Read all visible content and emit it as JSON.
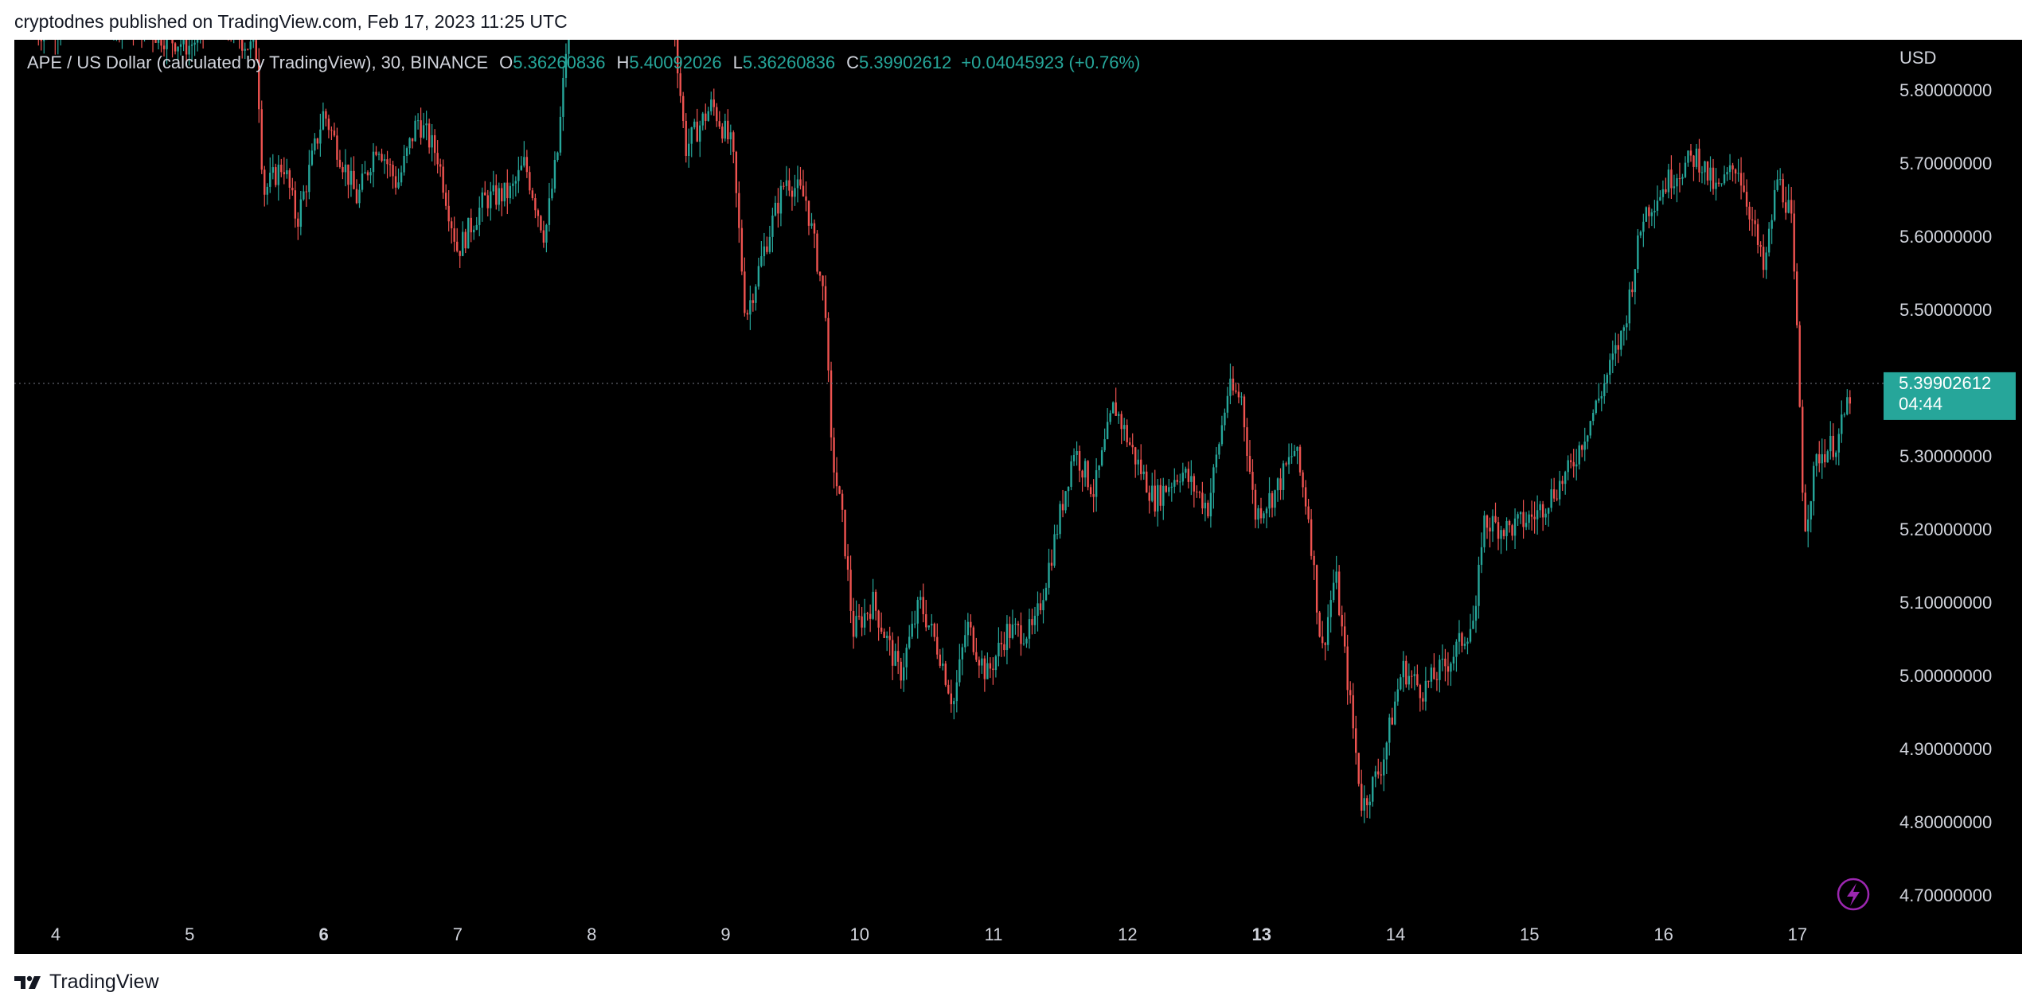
{
  "publish_line": "cryptodnes published on TradingView.com, Feb 17, 2023 11:25 UTC",
  "header": {
    "symbol": "APE / US Dollar (calculated by TradingView), 30, BINANCE",
    "o_label": "O",
    "o_value": "5.36260836",
    "h_label": "H",
    "h_value": "5.40092026",
    "l_label": "L",
    "l_value": "5.36260836",
    "c_label": "C",
    "c_value": "5.39902612",
    "change": "+0.04045923 (+0.76%)"
  },
  "brand": {
    "name": "TradingView",
    "icon": "tradingview-logo-icon"
  },
  "price_badge": {
    "price": "5.39902612",
    "countdown": "04:44"
  },
  "colors": {
    "up": "#26a69a",
    "down": "#ef5350",
    "background": "#000000",
    "axis_text": "#d1d4dc",
    "badge": "#26a69a",
    "lightning": "#9c27b0"
  },
  "chart_data": {
    "type": "candlestick",
    "interval_minutes": 30,
    "currency_label": "USD",
    "ylim": [
      4.65,
      5.85
    ],
    "y_ticks": [
      "5.80000000",
      "5.70000000",
      "5.60000000",
      "5.50000000",
      "5.30000000",
      "5.20000000",
      "5.10000000",
      "5.00000000",
      "4.90000000",
      "4.80000000",
      "4.70000000"
    ],
    "x_ticks": [
      {
        "label": "4",
        "day": 4,
        "bold": false
      },
      {
        "label": "5",
        "day": 5,
        "bold": false
      },
      {
        "label": "6",
        "day": 6,
        "bold": true
      },
      {
        "label": "7",
        "day": 7,
        "bold": false
      },
      {
        "label": "8",
        "day": 8,
        "bold": false
      },
      {
        "label": "9",
        "day": 9,
        "bold": false
      },
      {
        "label": "10",
        "day": 10,
        "bold": false
      },
      {
        "label": "11",
        "day": 11,
        "bold": false
      },
      {
        "label": "12",
        "day": 12,
        "bold": false
      },
      {
        "label": "13",
        "day": 13,
        "bold": true
      },
      {
        "label": "14",
        "day": 14,
        "bold": false
      },
      {
        "label": "15",
        "day": 15,
        "bold": false
      },
      {
        "label": "16",
        "day": 16,
        "bold": false
      },
      {
        "label": "17",
        "day": 17,
        "bold": false
      }
    ],
    "xlim_days": [
      3.7,
      17.7
    ],
    "last_price": 5.39902612,
    "price_path": [
      [
        3.85,
        5.88
      ],
      [
        4.4,
        5.9
      ],
      [
        5.0,
        5.86
      ],
      [
        5.2,
        5.9
      ],
      [
        5.5,
        5.85
      ],
      [
        5.55,
        5.66
      ],
      [
        5.7,
        5.7
      ],
      [
        5.8,
        5.62
      ],
      [
        6.0,
        5.77
      ],
      [
        6.25,
        5.65
      ],
      [
        6.4,
        5.73
      ],
      [
        6.55,
        5.67
      ],
      [
        6.7,
        5.76
      ],
      [
        6.85,
        5.71
      ],
      [
        7.0,
        5.58
      ],
      [
        7.2,
        5.65
      ],
      [
        7.4,
        5.66
      ],
      [
        7.5,
        5.7
      ],
      [
        7.65,
        5.6
      ],
      [
        7.75,
        5.72
      ],
      [
        7.85,
        5.95
      ],
      [
        8.6,
        5.92
      ],
      [
        8.7,
        5.72
      ],
      [
        8.9,
        5.78
      ],
      [
        9.05,
        5.72
      ],
      [
        9.15,
        5.49
      ],
      [
        9.3,
        5.59
      ],
      [
        9.45,
        5.68
      ],
      [
        9.6,
        5.65
      ],
      [
        9.75,
        5.5
      ],
      [
        9.78,
        5.32
      ],
      [
        9.88,
        5.2
      ],
      [
        9.95,
        5.06
      ],
      [
        10.1,
        5.1
      ],
      [
        10.3,
        5.0
      ],
      [
        10.45,
        5.1
      ],
      [
        10.6,
        5.03
      ],
      [
        10.7,
        4.96
      ],
      [
        10.8,
        5.07
      ],
      [
        10.95,
        5.0
      ],
      [
        11.1,
        5.06
      ],
      [
        11.3,
        5.06
      ],
      [
        11.45,
        5.18
      ],
      [
        11.6,
        5.31
      ],
      [
        11.75,
        5.25
      ],
      [
        11.9,
        5.37
      ],
      [
        12.05,
        5.3
      ],
      [
        12.2,
        5.24
      ],
      [
        12.4,
        5.28
      ],
      [
        12.6,
        5.23
      ],
      [
        12.75,
        5.39
      ],
      [
        12.85,
        5.38
      ],
      [
        12.95,
        5.22
      ],
      [
        13.1,
        5.25
      ],
      [
        13.25,
        5.31
      ],
      [
        13.35,
        5.22
      ],
      [
        13.45,
        5.03
      ],
      [
        13.55,
        5.14
      ],
      [
        13.7,
        4.9
      ],
      [
        13.75,
        4.82
      ],
      [
        13.9,
        4.88
      ],
      [
        14.05,
        5.01
      ],
      [
        14.2,
        4.98
      ],
      [
        14.4,
        5.02
      ],
      [
        14.6,
        5.08
      ],
      [
        14.65,
        5.21
      ],
      [
        14.85,
        5.2
      ],
      [
        15.05,
        5.22
      ],
      [
        15.3,
        5.28
      ],
      [
        15.5,
        5.37
      ],
      [
        15.7,
        5.47
      ],
      [
        15.85,
        5.63
      ],
      [
        16.05,
        5.68
      ],
      [
        16.25,
        5.71
      ],
      [
        16.4,
        5.66
      ],
      [
        16.55,
        5.7
      ],
      [
        16.65,
        5.63
      ],
      [
        16.75,
        5.55
      ],
      [
        16.85,
        5.68
      ],
      [
        16.95,
        5.63
      ],
      [
        17.0,
        5.45
      ],
      [
        17.05,
        5.2
      ],
      [
        17.15,
        5.3
      ],
      [
        17.3,
        5.32
      ],
      [
        17.4,
        5.39
      ]
    ]
  }
}
